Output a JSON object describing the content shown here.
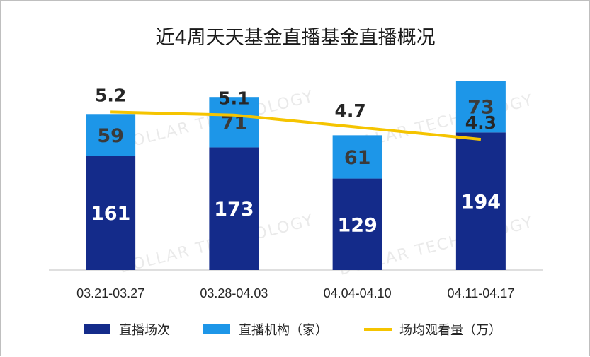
{
  "chart_data": {
    "type": "bar",
    "title": "近4周天天基金直播基金直播概况",
    "categories": [
      "03.21-03.27",
      "03.28-04.03",
      "04.04-04.10",
      "04.11-04.17"
    ],
    "series": [
      {
        "name": "直播场次",
        "kind": "bar",
        "stack": "main",
        "color": "#142b8a",
        "label_color": "#ffffff",
        "values": [
          161,
          173,
          129,
          194
        ]
      },
      {
        "name": "直播机构（家）",
        "kind": "bar",
        "stack": "main",
        "color": "#1d96e8",
        "label_color": "#3a3a3a",
        "values": [
          59,
          71,
          61,
          73
        ]
      },
      {
        "name": "场均观看量（万）",
        "kind": "line",
        "color": "#f5c400",
        "values": [
          5.2,
          5.1,
          4.7,
          4.3
        ]
      }
    ],
    "ylim": [
      0,
      300
    ],
    "y2lim": [
      0,
      7
    ],
    "grid": false,
    "legend_position": "bottom",
    "watermark": "DOLLAR TECHNOLOGY"
  }
}
